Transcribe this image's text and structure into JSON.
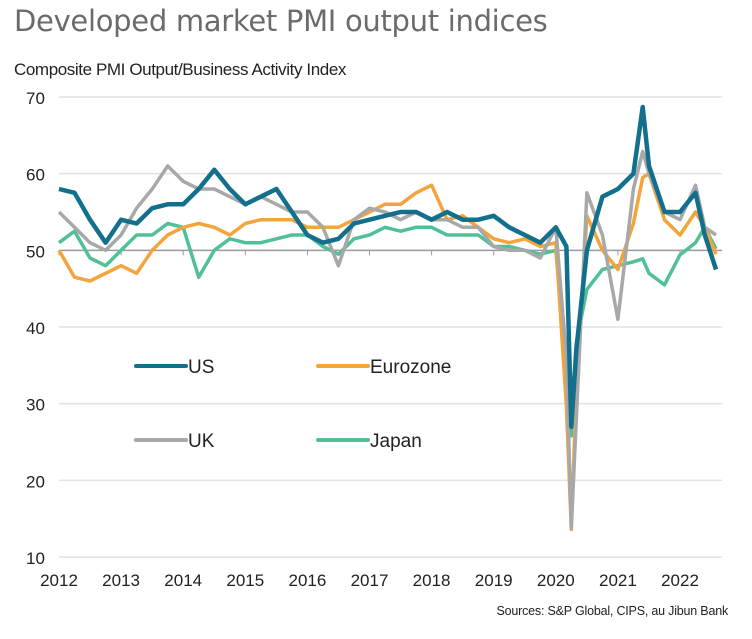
{
  "title": "Developed market PMI output indices",
  "subtitle": "Composite PMI Output/Business Activity Index",
  "source": "Sources: S&P Global, CIPS, au Jibun Bank",
  "chart_data": {
    "type": "line",
    "title": "Developed market PMI output indices",
    "ylabel": "Composite PMI Output/Business Activity Index",
    "xlabel": "",
    "ylim": [
      10,
      70
    ],
    "xlim": [
      2012,
      2022.6
    ],
    "yticks": [
      10,
      20,
      30,
      40,
      50,
      60,
      70
    ],
    "xticks": [
      "2012",
      "2013",
      "2014",
      "2015",
      "2016",
      "2017",
      "2018",
      "2019",
      "2020",
      "2021",
      "2022"
    ],
    "reference_line": 50,
    "grid": true,
    "legend_position": "inside-bottom-left",
    "x": [
      2012.0,
      2012.25,
      2012.5,
      2012.75,
      2013.0,
      2013.25,
      2013.5,
      2013.75,
      2014.0,
      2014.25,
      2014.5,
      2014.75,
      2015.0,
      2015.25,
      2015.5,
      2015.75,
      2016.0,
      2016.25,
      2016.5,
      2016.75,
      2017.0,
      2017.25,
      2017.5,
      2017.75,
      2018.0,
      2018.25,
      2018.5,
      2018.75,
      2019.0,
      2019.25,
      2019.5,
      2019.75,
      2020.0,
      2020.17,
      2020.25,
      2020.33,
      2020.5,
      2020.75,
      2021.0,
      2021.25,
      2021.4,
      2021.5,
      2021.75,
      2022.0,
      2022.25,
      2022.4,
      2022.58
    ],
    "series": [
      {
        "name": "US",
        "color": "#12708c",
        "values": [
          58,
          57.5,
          54,
          51,
          54,
          53.5,
          55.5,
          56,
          56,
          58,
          60.5,
          58,
          56,
          57,
          58,
          55,
          52,
          51,
          51.5,
          53.5,
          54,
          54.5,
          55,
          55,
          54,
          55,
          54,
          54,
          54.5,
          53,
          52,
          51,
          53,
          50.5,
          27,
          37,
          50,
          57,
          58,
          60,
          68.7,
          61,
          55,
          55,
          57.5,
          52,
          47.5
        ]
      },
      {
        "name": "Eurozone",
        "color": "#f4a43c",
        "values": [
          50,
          46.5,
          46,
          47,
          48,
          47,
          50,
          52,
          53,
          53.5,
          53,
          52,
          53.5,
          54,
          54,
          54,
          53,
          53,
          53,
          54,
          55,
          56,
          56,
          57.5,
          58.5,
          54,
          54.5,
          53,
          51.5,
          51,
          51.5,
          50.5,
          51,
          29.7,
          13.6,
          32,
          54.5,
          50,
          47.5,
          53.5,
          59.5,
          60,
          54,
          52,
          55,
          53,
          49.5
        ]
      },
      {
        "name": "UK",
        "color": "#a8a8a8",
        "values": [
          55,
          53,
          51,
          50,
          52,
          55.5,
          58,
          61,
          59,
          58,
          58,
          57,
          56,
          57,
          56,
          55,
          55,
          53,
          48,
          54,
          55.5,
          55,
          54,
          55,
          54,
          54,
          53,
          53,
          50.5,
          50,
          50,
          49,
          53,
          36,
          13.8,
          28,
          57.5,
          52,
          41,
          58,
          62.9,
          60,
          55,
          54,
          58.5,
          53,
          52
        ]
      },
      {
        "name": "Japan",
        "color": "#52c097",
        "values": [
          51,
          52.5,
          49,
          48,
          50,
          52,
          52,
          53.5,
          53,
          46.5,
          50,
          51.5,
          51,
          51,
          51.5,
          52,
          52,
          50.5,
          49.5,
          51.5,
          52,
          53,
          52.5,
          53,
          53,
          52,
          52,
          52,
          50.5,
          50.5,
          50,
          49.5,
          50,
          35,
          25.8,
          37.9,
          44.9,
          47.5,
          48,
          48.5,
          48.9,
          47,
          45.5,
          49.4,
          51,
          53,
          50.2
        ]
      }
    ],
    "legend": [
      "US",
      "Eurozone",
      "UK",
      "Japan"
    ]
  }
}
